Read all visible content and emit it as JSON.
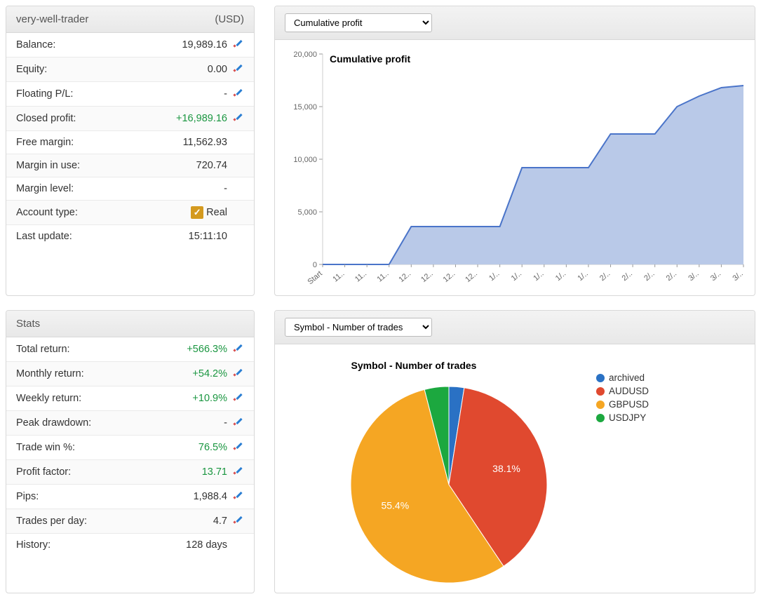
{
  "account_panel": {
    "title": "very-well-trader",
    "currency": "(USD)",
    "rows": [
      {
        "label": "Balance:",
        "value": "19,989.16",
        "green": false,
        "icon": true
      },
      {
        "label": "Equity:",
        "value": "0.00",
        "green": false,
        "icon": true
      },
      {
        "label": "Floating P/L:",
        "value": "-",
        "green": false,
        "icon": true
      },
      {
        "label": "Closed profit:",
        "value": "+16,989.16",
        "green": true,
        "icon": true
      },
      {
        "label": "Free margin:",
        "value": "11,562.93",
        "green": false,
        "icon": false
      },
      {
        "label": "Margin in use:",
        "value": "720.74",
        "green": false,
        "icon": false
      },
      {
        "label": "Margin level:",
        "value": "-",
        "green": false,
        "icon": false
      },
      {
        "label": "Account type:",
        "value": "Real",
        "green": false,
        "icon": false,
        "real_badge": true
      },
      {
        "label": "Last update:",
        "value": "15:11:10",
        "green": false,
        "icon": false
      }
    ]
  },
  "stats_panel": {
    "title": "Stats",
    "rows": [
      {
        "label": "Total return:",
        "value": "+566.3%",
        "green": true,
        "icon": true
      },
      {
        "label": "Monthly return:",
        "value": "+54.2%",
        "green": true,
        "icon": true
      },
      {
        "label": "Weekly return:",
        "value": "+10.9%",
        "green": true,
        "icon": true
      },
      {
        "label": "Peak drawdown:",
        "value": "-",
        "green": false,
        "icon": true
      },
      {
        "label": "Trade win %:",
        "value": "76.5%",
        "green": true,
        "icon": true
      },
      {
        "label": "Profit factor:",
        "value": "13.71",
        "green": true,
        "icon": true
      },
      {
        "label": "Pips:",
        "value": "1,988.4",
        "green": false,
        "icon": true
      },
      {
        "label": "Trades per day:",
        "value": "4.7",
        "green": false,
        "icon": true
      },
      {
        "label": "History:",
        "value": "128 days",
        "green": false,
        "icon": false
      }
    ]
  },
  "profit_chart": {
    "select_label": "Cumulative profit",
    "title": "Cumulative profit",
    "type": "area",
    "line_color": "#4a74c9",
    "fill_color": "#b9c9e8",
    "line_width": 2,
    "background_color": "#ffffff",
    "ylim": [
      0,
      20000
    ],
    "yticks": [
      0,
      5000,
      10000,
      15000,
      20000
    ],
    "ytick_labels": [
      "0",
      "5,000",
      "10,000",
      "15,000",
      "20,000"
    ],
    "xtick_labels": [
      "Start",
      "11..",
      "11..",
      "11..",
      "12..",
      "12..",
      "12..",
      "12..",
      "1/..",
      "1/..",
      "1/..",
      "1/..",
      "1/..",
      "2/..",
      "2/..",
      "2/..",
      "2/..",
      "3/..",
      "3/..",
      "3/.."
    ],
    "series_norm": [
      0,
      0,
      0,
      0,
      0.18,
      0.18,
      0.18,
      0.18,
      0.18,
      0.46,
      0.46,
      0.46,
      0.46,
      0.62,
      0.62,
      0.62,
      0.75,
      0.8,
      0.84,
      0.85
    ],
    "title_fontsize": 14
  },
  "pie_chart": {
    "select_label": "Symbol - Number of trades",
    "title": "Symbol - Number of trades",
    "type": "pie",
    "slices": [
      {
        "name": "archived",
        "color": "#2a71c4",
        "percent": 2.5,
        "show_label": false
      },
      {
        "name": "AUDUSD",
        "color": "#e0492f",
        "percent": 38.1,
        "show_label": true
      },
      {
        "name": "GBPUSD",
        "color": "#f5a623",
        "percent": 55.4,
        "show_label": true
      },
      {
        "name": "USDJPY",
        "color": "#1ca83f",
        "percent": 4.0,
        "show_label": false
      }
    ],
    "label_color": "#ffffff",
    "label_fontsize": 14,
    "legend_position": "right",
    "title_fontsize": 14
  }
}
